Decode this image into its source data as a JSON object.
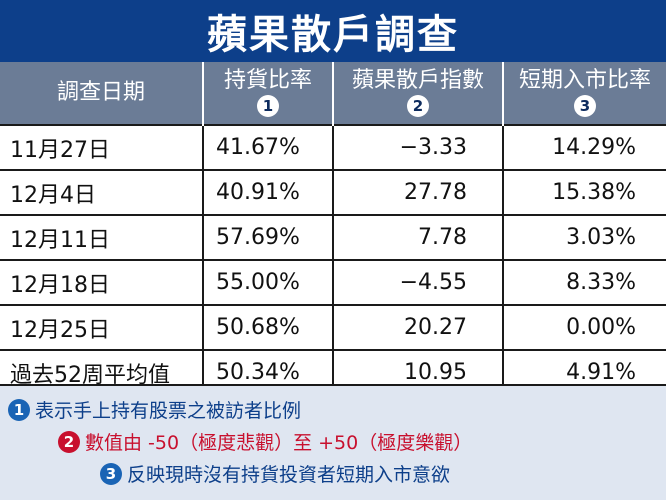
{
  "title": "蘋果散戶調查",
  "header": {
    "col1": "調查日期",
    "col2": "持貨比率",
    "col3": "蘋果散戶指數",
    "col4": "短期入市比率",
    "marks": [
      "1",
      "2",
      "3"
    ]
  },
  "rows": [
    {
      "date": "11月27日",
      "holding": "41.67%",
      "index": "−3.33",
      "short": "14.29%"
    },
    {
      "date": "12月4日",
      "holding": "40.91%",
      "index": "27.78",
      "short": "15.38%"
    },
    {
      "date": "12月11日",
      "holding": "57.69%",
      "index": "7.78",
      "short": "3.03%"
    },
    {
      "date": "12月18日",
      "holding": "55.00%",
      "index": "−4.55",
      "short": "8.33%"
    },
    {
      "date": "12月25日",
      "holding": "50.68%",
      "index": "20.27",
      "short": "0.00%"
    },
    {
      "date": "過去52周平均值",
      "holding": "50.34%",
      "index": "10.95",
      "short": "4.91%"
    }
  ],
  "notes": [
    {
      "mark": "1",
      "text": "表示手上持有股票之被訪者比例"
    },
    {
      "mark": "2",
      "text": "數值由 -50（極度悲觀）至 +50（極度樂觀）"
    },
    {
      "mark": "3",
      "text": "反映現時沒有持貨投資者短期入市意欲"
    }
  ],
  "colors": {
    "title_bg": "#0d3f8a",
    "header_bg": "#6b7c96",
    "negative": "#d4133a",
    "footer_bg": "#dfe6f1"
  },
  "chart_data": {
    "type": "table",
    "title": "蘋果散戶調查",
    "columns": [
      "調查日期",
      "持貨比率",
      "蘋果散戶指數",
      "短期入市比率"
    ],
    "rows": [
      [
        "11月27日",
        41.67,
        -3.33,
        14.29
      ],
      [
        "12月4日",
        40.91,
        27.78,
        15.38
      ],
      [
        "12月11日",
        57.69,
        7.78,
        3.03
      ],
      [
        "12月18日",
        55.0,
        -4.55,
        8.33
      ],
      [
        "12月25日",
        50.68,
        20.27,
        0.0
      ],
      [
        "過去52周平均值",
        50.34,
        10.95,
        4.91
      ]
    ]
  }
}
